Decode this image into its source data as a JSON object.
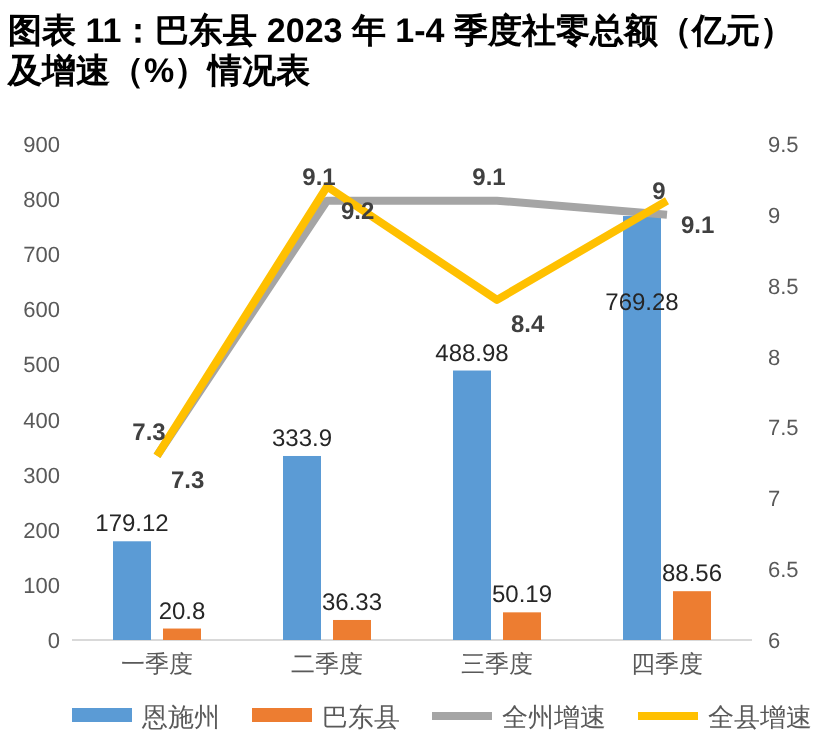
{
  "chart_data": {
    "type": "bar",
    "title": "图表 11：巴东县 2023 年 1-4 季度社零总额（亿元）及增速（%）情况表",
    "categories": [
      "一季度",
      "二季度",
      "三季度",
      "四季度"
    ],
    "series": [
      {
        "name": "恩施州",
        "color": "#5b9bd5",
        "values": [
          179.12,
          333.9,
          488.98,
          769.28
        ]
      },
      {
        "name": "巴东县",
        "color": "#ed7d31",
        "values": [
          20.8,
          36.33,
          50.19,
          88.56
        ]
      },
      {
        "name": "全州增速",
        "type": "line",
        "axis": "y2",
        "color": "#a5a5a5",
        "values": [
          7.3,
          9.1,
          9.1,
          9
        ]
      },
      {
        "name": "全县增速",
        "type": "line",
        "axis": "y2",
        "color": "#ffc000",
        "values": [
          7.3,
          9.2,
          8.4,
          9.1
        ]
      }
    ],
    "ylim": [
      0,
      900
    ],
    "yticks": [
      0,
      100,
      200,
      300,
      400,
      500,
      600,
      700,
      800,
      900
    ],
    "y2lim": [
      6,
      9.5
    ],
    "y2ticks": [
      6,
      6.5,
      7,
      7.5,
      8,
      8.5,
      9,
      9.5
    ],
    "data_labels": true,
    "legend": "bottom",
    "grid": false
  }
}
